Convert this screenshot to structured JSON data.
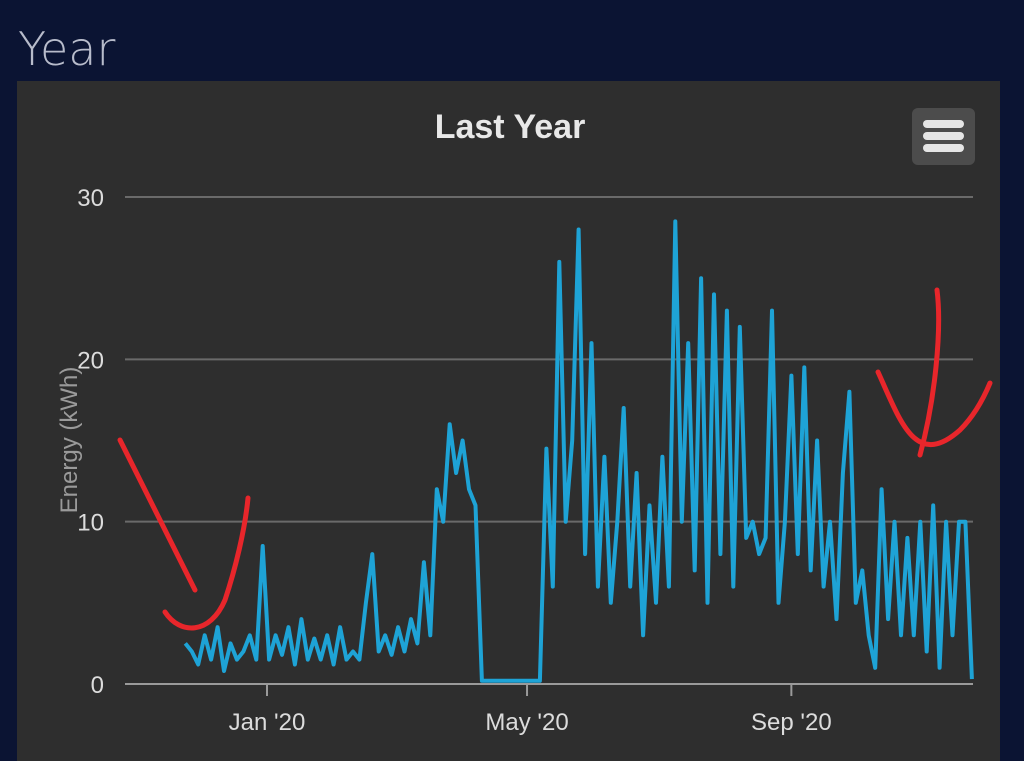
{
  "section_title": "Year",
  "menu_icon": "hamburger-menu-icon",
  "chart_data": {
    "type": "line",
    "title": "Last Year",
    "xlabel": "",
    "ylabel": "Energy (kWh)",
    "ylim": [
      0,
      30
    ],
    "yticks": [
      0,
      10,
      20,
      30
    ],
    "ytick_labels": [
      "0",
      "10",
      "20",
      "30"
    ],
    "xtick_dates": [
      "2020-01-01",
      "2020-05-01",
      "2020-09-01"
    ],
    "xtick_labels": [
      "Jan '20",
      "May '20",
      "Sep '20"
    ],
    "grid": true,
    "line_color": "#1ea3d6",
    "start_date": "2019-11-24",
    "step_days": 3,
    "series": [
      {
        "name": "Energy",
        "values": [
          2.5,
          2,
          1.2,
          3,
          1.5,
          3.5,
          0.8,
          2.5,
          1.5,
          2,
          3,
          1.5,
          8.5,
          1.5,
          3,
          1.8,
          3.5,
          1.2,
          4,
          1.5,
          2.8,
          1.5,
          3,
          1.2,
          3.5,
          1.5,
          2,
          1.5,
          5,
          8,
          2,
          3,
          1.8,
          3.5,
          2,
          4,
          2.5,
          7.5,
          3,
          12,
          10,
          16,
          13,
          15,
          12,
          11,
          0.2,
          0.2,
          0.2,
          0.2,
          0.2,
          0.2,
          0.2,
          0.2,
          0.2,
          0.2,
          14.5,
          6,
          26,
          10,
          15,
          28,
          8,
          21,
          6,
          14,
          5,
          10,
          17,
          6,
          13,
          3,
          11,
          5,
          14,
          6,
          28.5,
          10,
          21,
          7,
          25,
          5,
          24,
          8,
          23,
          6,
          22,
          9,
          10,
          8,
          9,
          23,
          5,
          10,
          19,
          8,
          19.5,
          7,
          15,
          6,
          10,
          4,
          13,
          18,
          5,
          7,
          3,
          1,
          12,
          4,
          10,
          3,
          9,
          3,
          10,
          2,
          11,
          1,
          10,
          3,
          10,
          10,
          0.3
        ]
      }
    ]
  }
}
